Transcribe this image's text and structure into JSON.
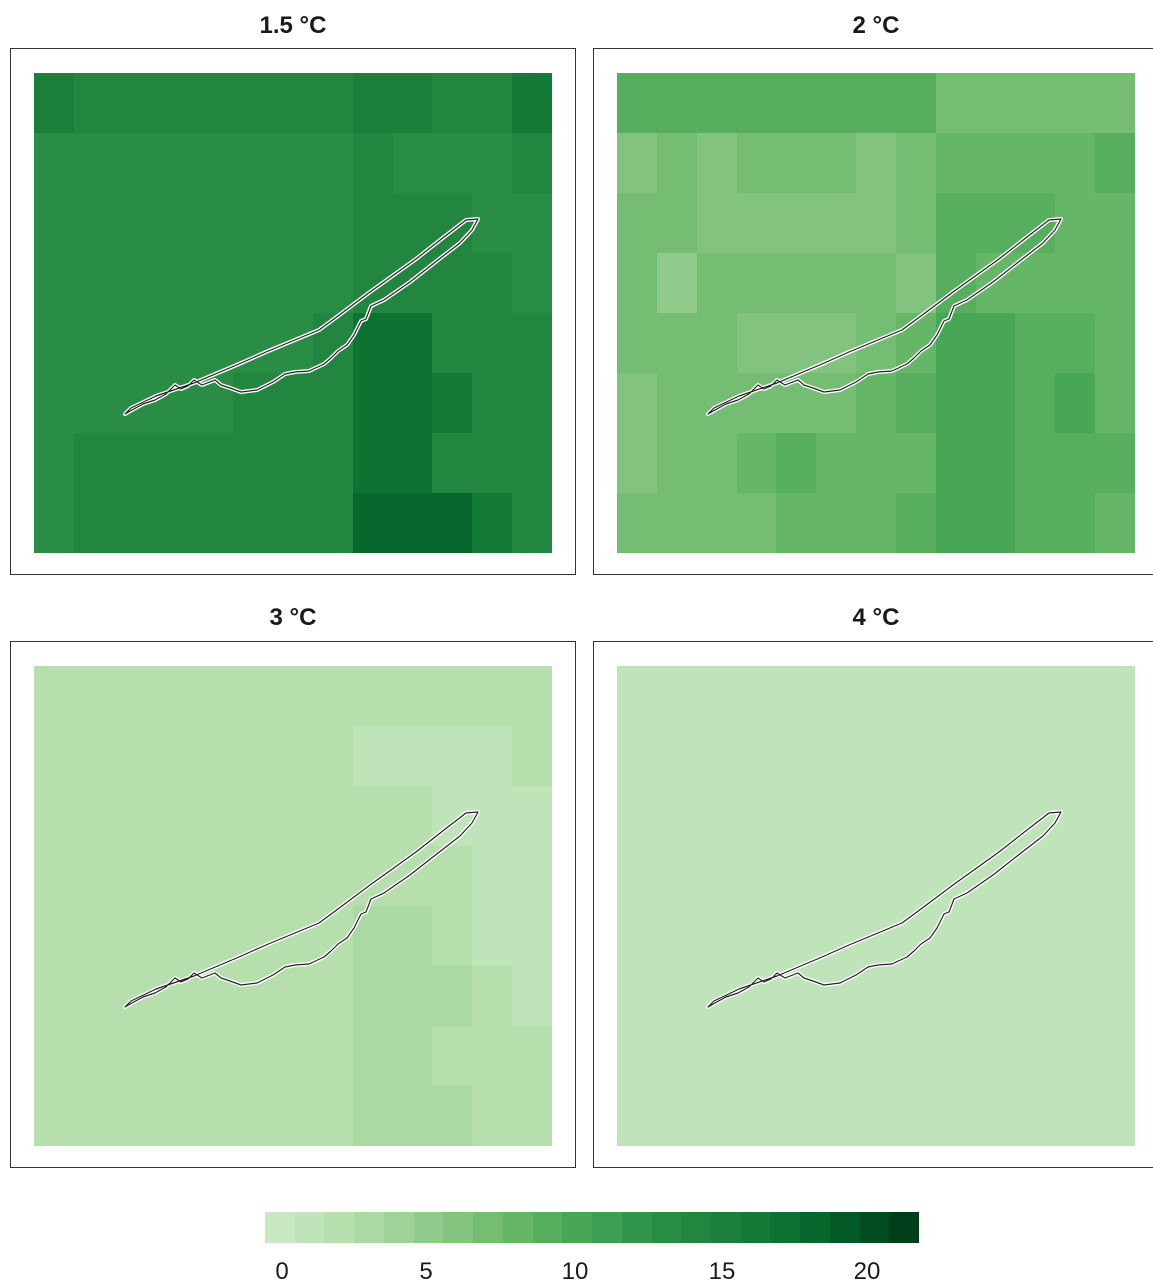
{
  "chart_data": {
    "type": "heatmap",
    "panels": [
      {
        "title": "1.5 °C",
        "grid": [
          [
            15.5,
            14,
            14,
            14,
            14,
            14,
            14,
            14,
            15.5,
            15.5,
            14,
            14,
            16
          ],
          [
            13,
            13,
            13,
            13,
            13,
            13,
            13,
            13,
            14,
            13,
            13,
            13,
            14
          ],
          [
            13,
            13,
            13,
            13,
            13,
            13,
            13,
            13,
            14,
            14,
            14,
            13,
            13
          ],
          [
            13,
            13,
            13,
            13,
            13,
            13,
            13,
            13,
            14,
            14,
            15,
            14,
            13
          ],
          [
            13,
            13,
            13,
            13,
            13,
            13,
            13,
            14,
            17,
            17,
            15,
            15,
            14
          ],
          [
            13,
            13,
            13,
            13,
            13,
            14,
            14,
            14,
            17.5,
            17.5,
            16,
            15,
            14
          ],
          [
            13,
            14,
            14,
            14,
            14,
            14,
            14,
            14,
            17.5,
            17.5,
            15,
            15,
            15
          ],
          [
            13,
            14,
            15,
            15,
            14,
            14,
            14,
            14,
            18,
            18,
            18,
            16,
            15
          ]
        ]
      },
      {
        "title": "2 °C",
        "grid": [
          [
            9,
            9,
            9,
            9,
            9,
            9,
            9,
            9,
            7,
            7,
            7,
            7,
            7
          ],
          [
            6,
            7,
            6,
            7,
            7,
            7,
            6,
            7,
            8,
            8,
            8,
            8,
            9
          ],
          [
            7,
            7,
            6,
            6,
            6,
            6,
            6,
            7,
            9,
            9,
            9,
            8,
            8
          ],
          [
            7,
            5,
            7,
            7,
            7,
            7,
            7,
            6,
            9,
            8,
            8,
            8,
            8
          ],
          [
            7,
            7,
            7,
            6,
            6,
            6,
            7,
            8,
            10,
            10,
            9,
            9,
            8
          ],
          [
            6,
            7,
            7,
            7,
            7,
            7,
            8,
            9,
            10,
            10,
            9,
            10,
            8
          ],
          [
            6,
            7,
            7,
            8,
            9,
            8,
            8,
            8,
            10,
            10,
            9,
            9,
            9
          ],
          [
            7,
            7,
            7,
            7,
            8,
            8,
            8,
            9,
            10,
            10,
            9,
            9,
            8
          ]
        ]
      },
      {
        "title": "3 °C",
        "grid": [
          [
            2,
            2,
            2,
            2,
            2,
            2,
            2,
            2,
            2,
            2,
            2,
            2,
            2
          ],
          [
            2,
            2,
            2,
            2,
            2,
            2,
            2,
            2,
            1,
            1,
            1,
            1,
            2
          ],
          [
            2,
            2,
            2,
            2,
            2,
            2,
            2,
            2,
            2,
            2,
            1,
            1,
            1
          ],
          [
            2,
            2,
            2,
            2,
            2,
            2,
            2,
            2,
            2,
            2,
            2,
            1,
            1
          ],
          [
            2,
            2,
            2,
            2,
            2,
            2,
            2,
            2,
            3,
            3,
            2,
            1,
            1
          ],
          [
            2,
            2,
            2,
            2,
            2,
            2,
            2,
            2,
            3,
            3,
            3,
            2,
            1
          ],
          [
            2,
            2,
            2,
            2,
            2,
            2,
            2,
            2,
            3,
            3,
            2,
            2,
            2
          ],
          [
            2,
            2,
            2,
            2,
            2,
            2,
            2,
            2,
            3,
            3,
            3,
            2,
            2
          ]
        ]
      },
      {
        "title": "4 °C",
        "grid": [
          [
            1,
            1,
            1,
            1,
            1,
            1,
            1,
            1,
            1,
            1,
            1,
            1,
            1
          ],
          [
            1,
            1,
            1,
            1,
            1,
            1,
            1,
            1,
            1,
            1,
            1,
            1,
            1
          ],
          [
            1,
            1,
            1,
            1,
            1,
            1,
            1,
            1,
            1,
            1,
            1,
            1,
            1
          ],
          [
            1,
            1,
            1,
            1,
            1,
            1,
            1,
            1,
            1,
            1,
            1,
            1,
            1
          ],
          [
            1,
            1,
            1,
            1,
            1,
            1,
            1,
            1,
            1,
            1,
            1,
            1,
            1
          ],
          [
            1,
            1,
            1,
            1,
            1,
            1,
            1,
            1,
            1,
            1,
            1,
            1,
            1
          ],
          [
            1,
            1,
            1,
            1,
            1,
            1,
            1,
            1,
            1,
            1,
            1,
            1,
            1
          ],
          [
            1,
            1,
            1,
            1,
            1,
            1,
            1,
            1,
            1,
            1,
            1,
            1,
            1
          ]
        ]
      }
    ],
    "colorbar": {
      "min": 0,
      "max": 22,
      "steps": 22,
      "ticks": [
        "0",
        "5",
        "10",
        "15",
        "20"
      ],
      "colors": [
        "#c8e8c2",
        "#c0e4b9",
        "#b6dfad",
        "#abd9a3",
        "#9ed298",
        "#91cb8c",
        "#82c47f",
        "#74bd73",
        "#66b668",
        "#57ae5e",
        "#48a756",
        "#3c9f51",
        "#31964b",
        "#2a8d45",
        "#238640",
        "#1b7e3b",
        "#137a37",
        "#0e7233",
        "#08672d",
        "#045a27",
        "#024c21",
        "#013f1b"
      ]
    }
  }
}
